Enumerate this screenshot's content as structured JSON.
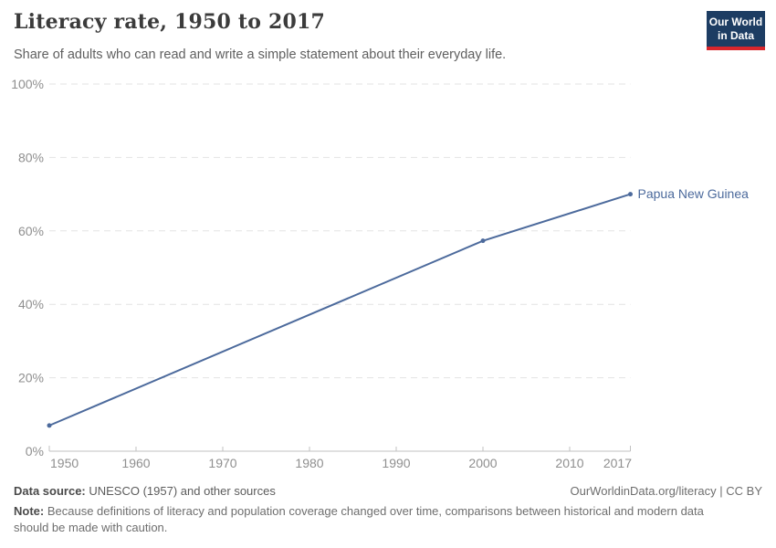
{
  "header": {
    "title": "Literacy rate, 1950 to 2017",
    "subtitle": "Share of adults who can read and write a simple statement about their everyday life."
  },
  "logo": {
    "line1": "Our World",
    "line2": "in Data",
    "bg_color": "#1d3d63",
    "accent_color": "#d9262c"
  },
  "chart_data": {
    "type": "line",
    "title": "Literacy rate, 1950 to 2017",
    "xlabel": "",
    "ylabel": "",
    "xlim": [
      1950,
      2017
    ],
    "ylim": [
      0,
      100
    ],
    "x_ticks": [
      1950,
      1960,
      1970,
      1980,
      1990,
      2000,
      2010,
      2017
    ],
    "y_ticks": [
      0,
      20,
      40,
      60,
      80,
      100
    ],
    "y_tick_suffix": "%",
    "grid": "horizontal-dashed",
    "grid_color": "#e3e3e3",
    "axis_color": "#c0c0c0",
    "tick_label_color": "#8f8f8f",
    "legend_position": "end-of-line-label",
    "series": [
      {
        "name": "Papua New Guinea",
        "color": "#4c6a9c",
        "x": [
          1950,
          2000,
          2017
        ],
        "values": [
          7,
          57.3,
          70
        ]
      }
    ]
  },
  "footer": {
    "source_label": "Data source:",
    "source_text": " UNESCO (1957) and other sources",
    "origin": "OurWorldinData.org/literacy | CC BY",
    "note_label": "Note:",
    "note_text": " Because definitions of literacy and population coverage changed over time, comparisons between historical and modern data should be made with caution."
  }
}
